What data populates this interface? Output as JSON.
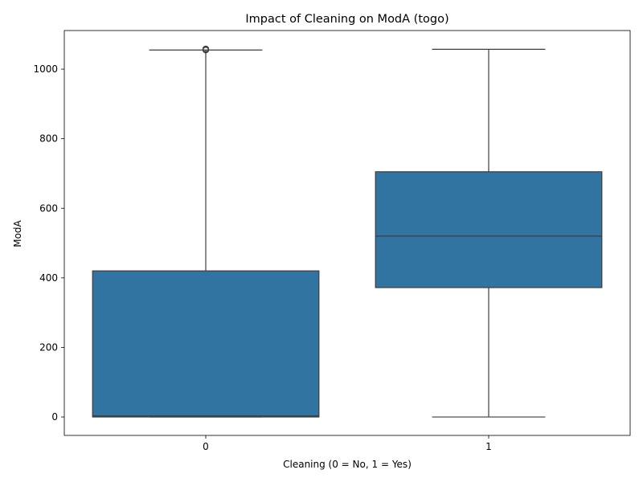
{
  "chart_data": {
    "type": "box",
    "title": "Impact of Cleaning on ModA (togo)",
    "xlabel": "Cleaning (0 = No, 1 = Yes)",
    "ylabel": "ModA",
    "categories": [
      "0",
      "1"
    ],
    "boxes": [
      {
        "category": "0",
        "whisker_low": 0,
        "q1": 0,
        "median": 3,
        "q3": 420,
        "whisker_high": 1055,
        "outliers": [
          1055,
          1056,
          1057,
          1058
        ]
      },
      {
        "category": "1",
        "whisker_low": 0,
        "q1": 372,
        "median": 520,
        "q3": 705,
        "whisker_high": 1057,
        "outliers": []
      }
    ],
    "yticks": [
      0,
      200,
      400,
      600,
      800,
      1000
    ],
    "ylim": [
      -53,
      1111
    ],
    "box_color": "#3274a1",
    "line_color": "#3d3d3d",
    "grid": false,
    "legend": "none"
  }
}
